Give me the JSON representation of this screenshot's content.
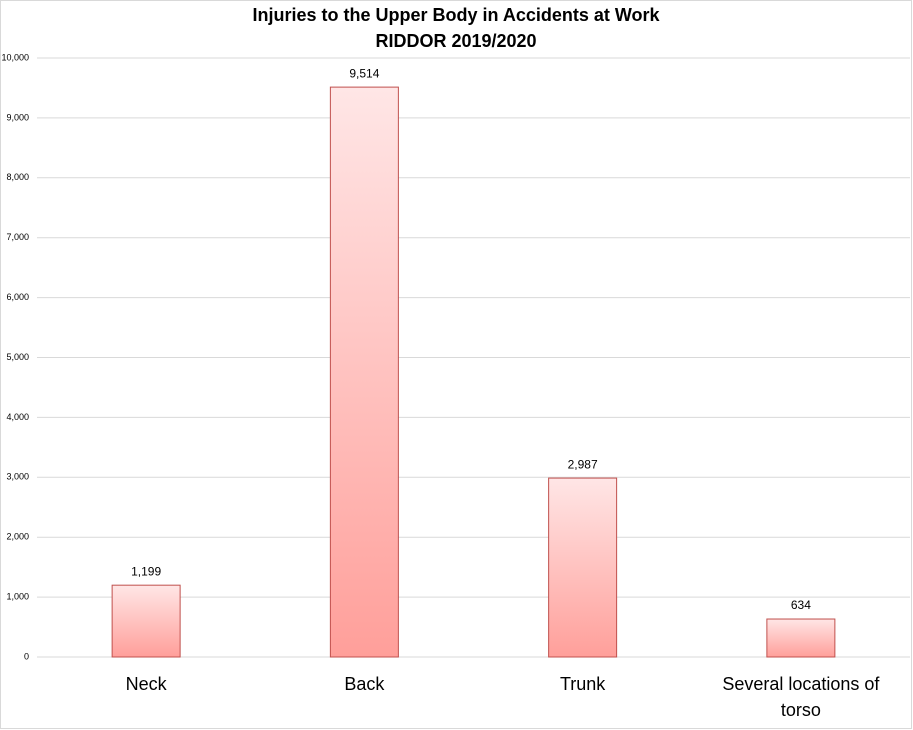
{
  "chart_data": {
    "type": "bar",
    "title": "Injuries to the Upper Body in Accidents at Work",
    "subtitle": "RIDDOR 2019/2020",
    "categories": [
      "Neck",
      "Back",
      "Trunk",
      "Several locations of torso"
    ],
    "values": [
      1199,
      9514,
      2987,
      634
    ],
    "value_labels": [
      "1,199",
      "9,514",
      "2,987",
      "634"
    ],
    "color": "#ff9f9a",
    "ylim": [
      0,
      10000
    ],
    "yticks": [
      0,
      {
        "value": 1000,
        "label": "1,000"
      },
      {
        "value": 2000,
        "label": "2,000"
      },
      {
        "value": 3000,
        "label": "3,000"
      },
      {
        "value": 4000,
        "label": "4,000"
      },
      {
        "value": 5000,
        "label": "5,000"
      },
      {
        "value": 6000,
        "label": "6,000"
      },
      {
        "value": 7000,
        "label": "7,000"
      },
      {
        "value": 8000,
        "label": "8,000"
      },
      {
        "value": 9000,
        "label": "9,000"
      },
      {
        "value": 10000,
        "label": "10,000"
      }
    ],
    "grid": true
  }
}
